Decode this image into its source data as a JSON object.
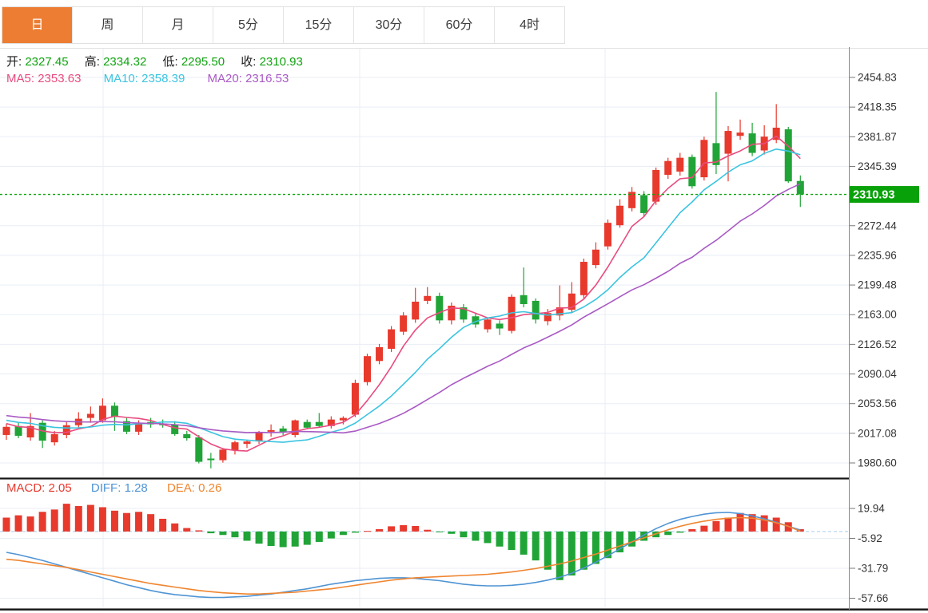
{
  "tabs": {
    "items": [
      {
        "label": "日",
        "active": true
      },
      {
        "label": "周",
        "active": false
      },
      {
        "label": "月",
        "active": false
      },
      {
        "label": "5分",
        "active": false
      },
      {
        "label": "15分",
        "active": false
      },
      {
        "label": "30分",
        "active": false
      },
      {
        "label": "60分",
        "active": false
      },
      {
        "label": "4时",
        "active": false
      }
    ]
  },
  "quote_bar": {
    "open_label": "开:",
    "open": "2327.45",
    "high_label": "高:",
    "high": "2334.32",
    "low_label": "低:",
    "low": "2295.50",
    "close_label": "收:",
    "close": "2310.93"
  },
  "ma_bar": {
    "ma5_label": "MA5:",
    "ma5": "2353.63",
    "ma10_label": "MA10:",
    "ma10": "2358.39",
    "ma20_label": "MA20:",
    "ma20": "2316.53"
  },
  "macd_bar": {
    "macd_label": "MACD:",
    "macd": "2.05",
    "diff_label": "DIFF:",
    "diff": "1.28",
    "dea_label": "DEA:",
    "dea": "0.26"
  },
  "price_axis": {
    "ticks": [
      "2454.83",
      "2418.35",
      "2381.87",
      "2345.39",
      "2272.44",
      "2235.96",
      "2199.48",
      "2163.00",
      "2126.52",
      "2090.04",
      "2053.56",
      "2017.08",
      "1980.60"
    ],
    "current_price": "2310.93"
  },
  "macd_axis": {
    "ticks": [
      "19.94",
      "-5.92",
      "-31.79",
      "-57.66"
    ]
  },
  "colors": {
    "up": "#e8392d",
    "down": "#21a437",
    "ma5": "#e94b7e",
    "ma10": "#3bc4e0",
    "ma20": "#a95ac4",
    "diff": "#4f94d4",
    "dea": "#ef8530",
    "macd_text": "#e8392d",
    "price_line": "#0ba50b",
    "badge_bg": "#09a10a",
    "value_green": "#0fa30f",
    "grid": "#e8eef5",
    "axis_text": "#333333",
    "tab_active_bg": "#ec7d33",
    "separator": "#151515",
    "axis_line": "#8a8a8a",
    "zero_dash": "#a9cdec"
  },
  "chart_data": {
    "type": "candlestick",
    "title": "",
    "legend": [
      "MA5",
      "MA10",
      "MA20"
    ],
    "main": {
      "ylim": [
        1963,
        2491
      ],
      "tick_step": 36.48,
      "current_price": 2310.93,
      "candles": [
        [
          2015,
          2029,
          2009,
          2025
        ],
        [
          2026,
          2031,
          2011,
          2014
        ],
        [
          2012,
          2042,
          2008,
          2026
        ],
        [
          2030,
          2033,
          1999,
          2008
        ],
        [
          2006,
          2020,
          2002,
          2016
        ],
        [
          2015,
          2031,
          2011,
          2027
        ],
        [
          2027,
          2043,
          2023,
          2035
        ],
        [
          2036,
          2050,
          2030,
          2041
        ],
        [
          2033,
          2060,
          2030,
          2051
        ],
        [
          2051,
          2055,
          2020,
          2037
        ],
        [
          2032,
          2036,
          2016,
          2019
        ],
        [
          2019,
          2033,
          2015,
          2029
        ],
        [
          2031,
          2036,
          2024,
          2028
        ],
        [
          2029,
          2034,
          2024,
          2027
        ],
        [
          2028,
          2032,
          2014,
          2016
        ],
        [
          2016,
          2020,
          2008,
          2011
        ],
        [
          2012,
          2015,
          1980,
          1982
        ],
        [
          1986,
          1993,
          1974,
          1984
        ],
        [
          1984,
          1999,
          1981,
          1997
        ],
        [
          1996,
          2008,
          1991,
          2006
        ],
        [
          2004,
          2009,
          1999,
          2007
        ],
        [
          2007,
          2020,
          2004,
          2018
        ],
        [
          2019,
          2028,
          2013,
          2021
        ],
        [
          2023,
          2026,
          2015,
          2018
        ],
        [
          2015,
          2034,
          2012,
          2033
        ],
        [
          2031,
          2034,
          2022,
          2024
        ],
        [
          2031,
          2042,
          2024,
          2026
        ],
        [
          2026,
          2038,
          2023,
          2034
        ],
        [
          2033,
          2038,
          2028,
          2036
        ],
        [
          2040,
          2083,
          2037,
          2079
        ],
        [
          2080,
          2115,
          2076,
          2112
        ],
        [
          2106,
          2127,
          2102,
          2123
        ],
        [
          2121,
          2149,
          2117,
          2145
        ],
        [
          2142,
          2166,
          2138,
          2162
        ],
        [
          2157,
          2196,
          2153,
          2179
        ],
        [
          2180,
          2197,
          2176,
          2186
        ],
        [
          2186,
          2190,
          2152,
          2156
        ],
        [
          2156,
          2178,
          2151,
          2174
        ],
        [
          2172,
          2176,
          2153,
          2157
        ],
        [
          2161,
          2165,
          2147,
          2151
        ],
        [
          2145,
          2160,
          2141,
          2157
        ],
        [
          2152,
          2156,
          2138,
          2146
        ],
        [
          2143,
          2188,
          2140,
          2185
        ],
        [
          2187,
          2221,
          2172,
          2176
        ],
        [
          2180,
          2183,
          2152,
          2157
        ],
        [
          2155,
          2170,
          2150,
          2165
        ],
        [
          2162,
          2199,
          2156,
          2172
        ],
        [
          2169,
          2203,
          2165,
          2189
        ],
        [
          2187,
          2232,
          2183,
          2228
        ],
        [
          2224,
          2252,
          2220,
          2243
        ],
        [
          2247,
          2280,
          2243,
          2276
        ],
        [
          2273,
          2305,
          2270,
          2297
        ],
        [
          2294,
          2320,
          2290,
          2314
        ],
        [
          2310,
          2315,
          2284,
          2288
        ],
        [
          2302,
          2344,
          2298,
          2341
        ],
        [
          2335,
          2356,
          2330,
          2352
        ],
        [
          2339,
          2362,
          2334,
          2356
        ],
        [
          2357,
          2360,
          2318,
          2321
        ],
        [
          2332,
          2382,
          2328,
          2378
        ],
        [
          2374,
          2437,
          2336,
          2347
        ],
        [
          2361,
          2395,
          2327,
          2389
        ],
        [
          2383,
          2403,
          2378,
          2387
        ],
        [
          2386,
          2399,
          2358,
          2362
        ],
        [
          2365,
          2396,
          2360,
          2382
        ],
        [
          2378,
          2422,
          2374,
          2393
        ],
        [
          2391,
          2394,
          2325,
          2327
        ],
        [
          2327.45,
          2334.32,
          2295.5,
          2310.93
        ]
      ],
      "ma_warmup_closes": [
        2052,
        2050,
        2048,
        2047,
        2046,
        2045,
        2044,
        2043,
        2042,
        2041,
        2040,
        2039,
        2038,
        2037,
        2036,
        2035,
        2033,
        2031,
        2029,
        2027
      ],
      "ma_periods": [
        5,
        10,
        20
      ]
    },
    "macd": {
      "ylim": [
        -67,
        45
      ],
      "histogram": [
        12,
        14,
        13,
        17,
        19,
        24,
        22,
        23,
        21,
        18,
        16,
        17,
        15,
        11,
        7,
        3,
        1,
        -1.5,
        -3,
        -5,
        -8,
        -10.5,
        -12.5,
        -13.5,
        -13,
        -11.5,
        -9,
        -6,
        -3,
        -1,
        0.5,
        2,
        4.5,
        5.5,
        4.8,
        1.5,
        -0.5,
        -2,
        -5,
        -8,
        -10,
        -13,
        -16,
        -20,
        -25,
        -33,
        -42,
        -38,
        -33,
        -28,
        -23,
        -18,
        -13,
        -8,
        -5,
        -3,
        -1,
        2,
        5,
        9,
        12,
        16,
        15,
        14,
        12,
        8,
        2.05
      ],
      "diff": [
        -18,
        -20,
        -22.5,
        -25,
        -28,
        -31,
        -34,
        -37,
        -40,
        -43,
        -46,
        -48.5,
        -51,
        -53,
        -54.5,
        -55.5,
        -56.5,
        -57,
        -57,
        -56.5,
        -56,
        -55,
        -54,
        -52.5,
        -51,
        -49.5,
        -47.5,
        -45.5,
        -44,
        -42.5,
        -41.5,
        -40.5,
        -40,
        -40,
        -40.5,
        -41.5,
        -42.5,
        -44,
        -45.5,
        -46.5,
        -47,
        -47,
        -46.5,
        -45.5,
        -44,
        -42,
        -39.5,
        -36,
        -31.5,
        -26.5,
        -21,
        -15,
        -9,
        -3,
        2.5,
        7,
        10.5,
        13,
        15,
        16.2,
        16.5,
        15.5,
        13.5,
        11,
        8,
        4.5,
        1.28
      ],
      "dea": [
        -24,
        -25,
        -26.5,
        -28,
        -29.5,
        -31,
        -33,
        -35,
        -37,
        -39,
        -41,
        -43,
        -45,
        -46.5,
        -48,
        -49.5,
        -51,
        -52,
        -53,
        -53.5,
        -54,
        -54,
        -53.5,
        -53,
        -52.5,
        -51.5,
        -50.5,
        -49.5,
        -48,
        -46.5,
        -45,
        -43.5,
        -42,
        -41,
        -40,
        -39.5,
        -39,
        -38.5,
        -38,
        -37.5,
        -37,
        -36,
        -35,
        -33.5,
        -32,
        -30,
        -28,
        -25.5,
        -22.5,
        -19.5,
        -16,
        -12.5,
        -9,
        -5.5,
        -2,
        1.5,
        4.5,
        7,
        9,
        10.5,
        11.5,
        12,
        11.5,
        10,
        7.5,
        4.5,
        0.26
      ]
    },
    "grid": {
      "vertical_x": [
        129,
        450,
        757
      ],
      "horizontal": "at-axis-ticks"
    }
  }
}
